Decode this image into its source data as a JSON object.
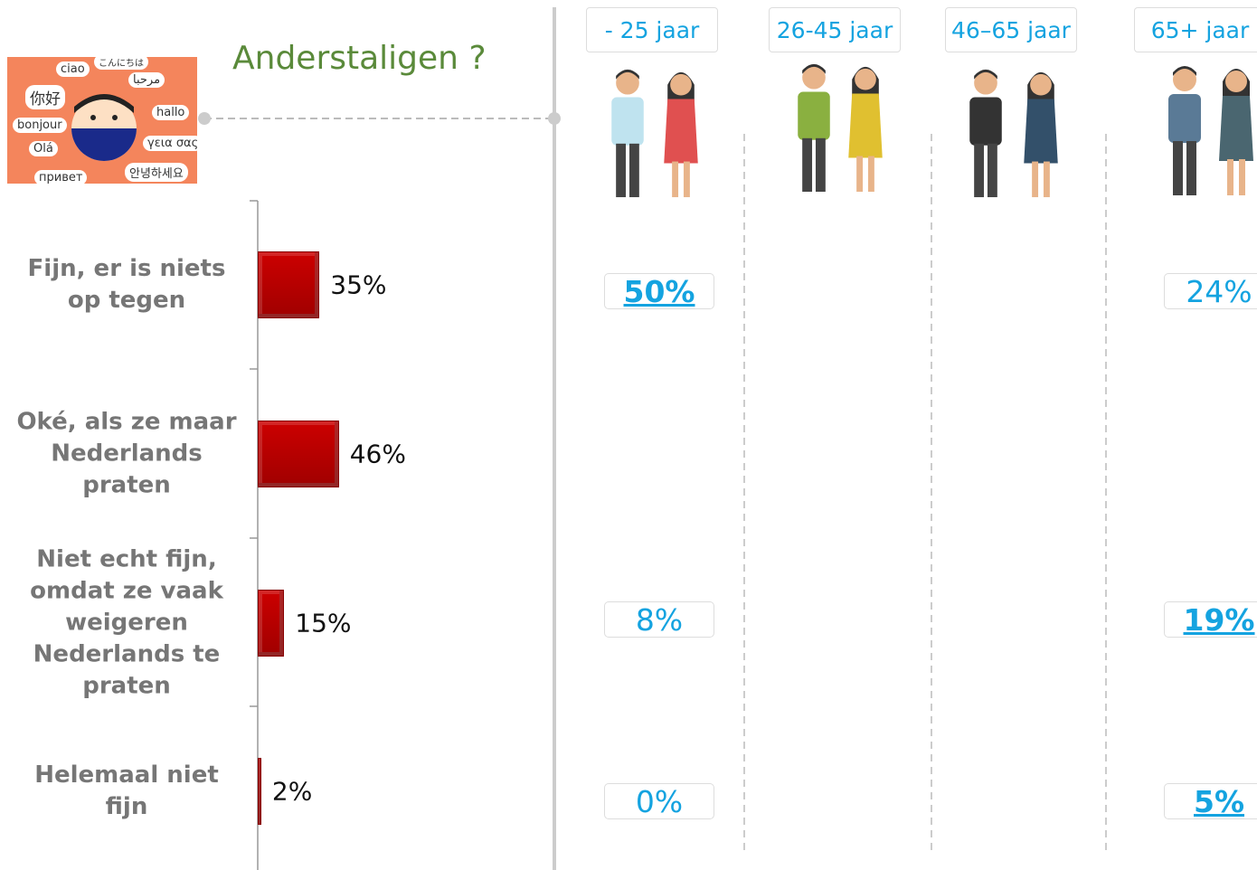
{
  "chart_data": {
    "type": "bar",
    "orientation": "horizontal",
    "title": "Anderstaligen ?",
    "categories": [
      "Fijn, er is niets op tegen",
      "Oké, als ze maar Nederlands praten",
      "Niet echt fijn, omdat ze vaak weigeren Nederlands te praten",
      "Helemaal niet fijn"
    ],
    "values": [
      35,
      46,
      15,
      2
    ],
    "value_labels": [
      "35%",
      "46%",
      "15%",
      "2%"
    ],
    "color": "#cc0000"
  },
  "age_groups": [
    {
      "label": "- 25 jaar",
      "values": [
        50,
        null,
        8,
        0
      ],
      "value_labels": [
        "50%",
        null,
        "8%",
        "0%"
      ],
      "emphasis": [
        true,
        null,
        false,
        false
      ]
    },
    {
      "label": "26-45 jaar",
      "values": [
        null,
        null,
        null,
        null
      ],
      "value_labels": [
        null,
        null,
        null,
        null
      ],
      "emphasis": [
        null,
        null,
        null,
        null
      ]
    },
    {
      "label": "46–65 jaar",
      "values": [
        null,
        null,
        null,
        null
      ],
      "value_labels": [
        null,
        null,
        null,
        null
      ],
      "emphasis": [
        null,
        null,
        null,
        null
      ]
    },
    {
      "label": "65+ jaar",
      "values": [
        24,
        null,
        19,
        5
      ],
      "value_labels": [
        "24%",
        null,
        "19%",
        "5%"
      ],
      "emphasis": [
        false,
        null,
        true,
        true
      ]
    }
  ],
  "illustration_words": [
    "ciao",
    "こんにちは",
    "你好",
    "مرحبا",
    "hallo",
    "bonjour",
    "Olá",
    "γεια σας",
    "안녕하세요",
    "привет"
  ]
}
